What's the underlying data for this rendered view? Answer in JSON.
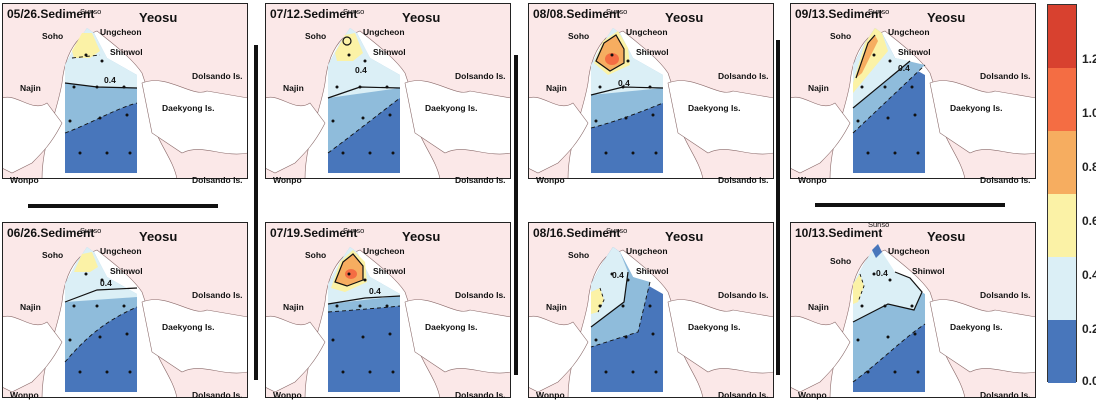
{
  "panels": [
    {
      "title": "05/26.Sediment",
      "city": "Yeosu",
      "place_labels": {
        "sunso": "Sunso",
        "soho": "Soho",
        "ungcheon": "Ungcheon",
        "shinwol": "Shinwol",
        "najin": "Najin",
        "dolsando_upper": "Dolsando Is.",
        "daekyong": "Daekyong Is.",
        "wonpo": "Wonpo",
        "dolsando_lower": "Dolsando Is."
      },
      "contour_labels": [
        "0.4"
      ]
    },
    {
      "title": "07/12.Sediment",
      "city": "Yeosu",
      "place_labels": {
        "sunso": "Sunso",
        "soho": "Soho",
        "ungcheon": "Ungcheon",
        "shinwol": "Shinwol",
        "najin": "Najin",
        "dolsando_upper": "Dolsando Is.",
        "daekyong": "Daekyong Is.",
        "wonpo": "Wonpo",
        "dolsando_lower": "Dolsando Is."
      },
      "contour_labels": [
        "0.4"
      ]
    },
    {
      "title": "08/08.Sediment",
      "city": "Yeosu",
      "place_labels": {
        "sunso": "Sunso",
        "soho": "Soho",
        "ungcheon": "Ungcheon",
        "shinwol": "Shinwol",
        "najin": "Najin",
        "dolsando_upper": "Dolsando Is.",
        "daekyong": "Daekyong Is.",
        "wonpo": "Wonpo",
        "dolsando_lower": "Dolsando Is."
      },
      "contour_labels": [
        "0.4"
      ]
    },
    {
      "title": "09/13.Sediment",
      "city": "Yeosu",
      "place_labels": {
        "sunso": "Sunso",
        "soho": "Soho",
        "ungcheon": "Ungcheon",
        "shinwol": "Shinwol",
        "najin": "Najin",
        "dolsando_upper": "Dolsando Is.",
        "daekyong": "Daekyong Is.",
        "wonpo": "Wonpo",
        "dolsando_lower": "Dolsando Is."
      },
      "contour_labels": [
        "0.4"
      ]
    },
    {
      "title": "06/26.Sediment",
      "city": "Yeosu",
      "place_labels": {
        "sunso": "Sunso",
        "soho": "Soho",
        "ungcheon": "Ungcheon",
        "shinwol": "Shinwol",
        "najin": "Najin",
        "dolsando_upper": "Dolsando Is.",
        "daekyong": "Daekyong Is.",
        "wonpo": "Wonpo",
        "dolsando_lower": "Dolsando Is."
      },
      "contour_labels": [
        "0.4"
      ]
    },
    {
      "title": "07/19.Sediment",
      "city": "Yeosu",
      "place_labels": {
        "sunso": "Sunso",
        "soho": "Soho",
        "ungcheon": "Ungcheon",
        "shinwol": "Shinwol",
        "najin": "Najin",
        "dolsando_upper": "Dolsando Is.",
        "daekyong": "Daekyong Is.",
        "wonpo": "Wonpo",
        "dolsando_lower": "Dolsando Is."
      },
      "contour_labels": [
        "0.4"
      ]
    },
    {
      "title": "08/16.Sediment",
      "city": "Yeosu",
      "place_labels": {
        "sunso": "Sunso",
        "soho": "Soho",
        "ungcheon": "Ungcheon",
        "shinwol": "Shinwol",
        "najin": "Najin",
        "dolsando_upper": "Dolsando Is.",
        "daekyong": "Daekyong Is.",
        "wonpo": "Wonpo",
        "dolsando_lower": "Dolsando Is."
      },
      "contour_labels": [
        "0.4"
      ]
    },
    {
      "title": "10/13.Sediment",
      "city": "Yeosu",
      "place_labels": {
        "sunso": "Sunso",
        "soho": "Soho",
        "ungcheon": "Ungcheon",
        "shinwol": "Shinwol",
        "najin": "Najin",
        "dolsando_upper": "Dolsando Is.",
        "daekyong": "Daekyong Is.",
        "wonpo": "Wonpo",
        "dolsando_lower": "Dolsando Is."
      },
      "contour_labels": [
        "0.4"
      ]
    }
  ],
  "colorbar": {
    "ticks": [
      "1.2",
      "1.0",
      "0.8",
      "0.6",
      "0.4",
      "0.2",
      "0.0"
    ],
    "colors": [
      "#d8412f",
      "#f46d43",
      "#f6ad60",
      "#fbf2a6",
      "#dbeff6",
      "#8fbcdb",
      "#4876bb"
    ]
  },
  "colors": {
    "land": "#fbe8e8",
    "coast": "#8a6a6a",
    "station": "#111111"
  }
}
